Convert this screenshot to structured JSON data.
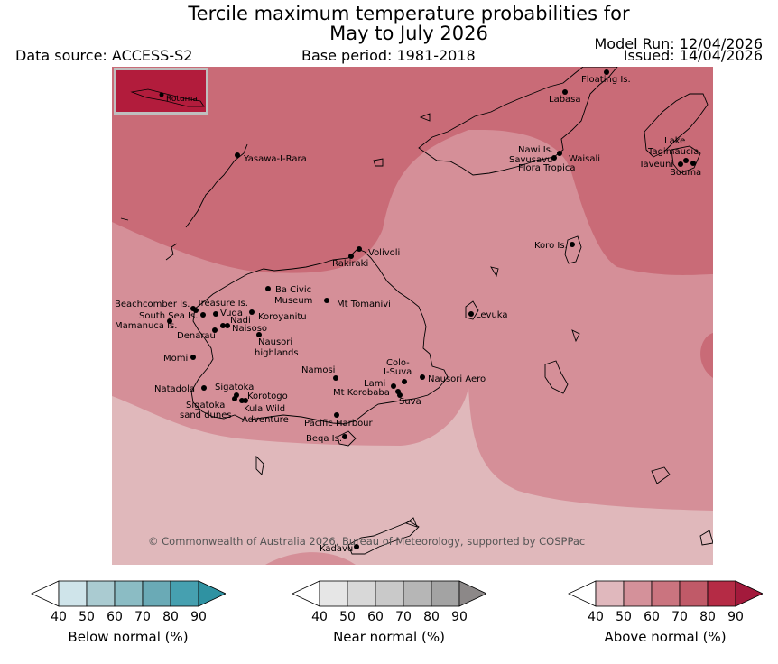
{
  "header": {
    "title_line1": "Tercile maximum temperature probabilities for",
    "title_line2": "May to July 2026",
    "data_source": "Data source: ACCESS-S2",
    "base_period": "Base period: 1981-2018",
    "model_run": "Model Run: 12/04/2026",
    "issued": "Issued: 14/04/2026"
  },
  "map": {
    "inset_label": "Rotuma",
    "copyright": "© Commonwealth of Australia 2026, Bureau of Meteorology, supported by COSPPac",
    "places": [
      {
        "id": "floating",
        "label": "Floating Is."
      },
      {
        "id": "labasa",
        "label": "Labasa"
      },
      {
        "id": "nawi",
        "label": "Nawi Is."
      },
      {
        "id": "savusavu",
        "label": "Savusavu"
      },
      {
        "id": "waisali",
        "label": "Waisali"
      },
      {
        "id": "flora",
        "label": "Flora Tropica"
      },
      {
        "id": "lake_tag",
        "label": "Lake"
      },
      {
        "id": "lake_tag2",
        "label": "Tagimaucia"
      },
      {
        "id": "taveuni",
        "label": "Taveuni"
      },
      {
        "id": "bouma",
        "label": "Bouma"
      },
      {
        "id": "yasawa",
        "label": "Yasawa-I-Rara"
      },
      {
        "id": "koro",
        "label": "Koro Is."
      },
      {
        "id": "volivoli",
        "label": "Volivoli"
      },
      {
        "id": "rakiraki",
        "label": "Rakiraki"
      },
      {
        "id": "bacivic",
        "label": "Ba Civic"
      },
      {
        "id": "bacivic2",
        "label": "Museum"
      },
      {
        "id": "tomanivi",
        "label": "Mt Tomanivi"
      },
      {
        "id": "levuka",
        "label": "Levuka"
      },
      {
        "id": "beachcomber",
        "label": "Beachcomber Is."
      },
      {
        "id": "treasure",
        "label": "Treasure Is."
      },
      {
        "id": "southsea",
        "label": "South Sea Is."
      },
      {
        "id": "vuda",
        "label": "Vuda"
      },
      {
        "id": "koroyanitu",
        "label": "Koroyanitu"
      },
      {
        "id": "nadi",
        "label": "Nadi"
      },
      {
        "id": "mamanuca",
        "label": "Mamanuca Is."
      },
      {
        "id": "naisoso",
        "label": "Naisoso"
      },
      {
        "id": "denarau",
        "label": "Denarau"
      },
      {
        "id": "nausori_h",
        "label": "Nausori"
      },
      {
        "id": "nausori_h2",
        "label": "highlands"
      },
      {
        "id": "momi",
        "label": "Momi"
      },
      {
        "id": "namosi",
        "label": "Namosi"
      },
      {
        "id": "colo",
        "label": "Colo-"
      },
      {
        "id": "colo2",
        "label": "I-Suva"
      },
      {
        "id": "nausori_aero",
        "label": "Nausori Aero"
      },
      {
        "id": "natadola",
        "label": "Natadola"
      },
      {
        "id": "sigatoka",
        "label": "Sigatoka"
      },
      {
        "id": "lami",
        "label": "Lami"
      },
      {
        "id": "korobaba",
        "label": "Mt Korobaba"
      },
      {
        "id": "korotogo",
        "label": "Korotogo"
      },
      {
        "id": "suva",
        "label": "Suva"
      },
      {
        "id": "sig_dunes",
        "label": "Sigatoka"
      },
      {
        "id": "sig_dunes2",
        "label": "sand dunes"
      },
      {
        "id": "kula",
        "label": "Kula Wild"
      },
      {
        "id": "kula2",
        "label": "Adventure"
      },
      {
        "id": "pacific",
        "label": "Pacific Harbour"
      },
      {
        "id": "beqa",
        "label": "Beqa Is."
      },
      {
        "id": "kadavu",
        "label": "Kadavu"
      }
    ]
  },
  "legends": [
    {
      "id": "below",
      "label": "Below normal (%)",
      "colors": [
        "#cfe4ea",
        "#aacbd1",
        "#8bbcc4",
        "#6aaab6",
        "#46a0b0",
        "#2f92a2"
      ],
      "ticks": [
        "40",
        "50",
        "60",
        "70",
        "80",
        "90"
      ]
    },
    {
      "id": "near",
      "label": "Near normal (%)",
      "colors": [
        "#e6e6e6",
        "#d8d8d8",
        "#c9c9c9",
        "#b6b6b6",
        "#a3a3a3",
        "#8c8888"
      ],
      "ticks": [
        "40",
        "50",
        "60",
        "70",
        "80",
        "90"
      ]
    },
    {
      "id": "above",
      "label": "Above normal (%)",
      "colors": [
        "#e0b8bd",
        "#d4919a",
        "#ca747f",
        "#c05a68",
        "#b52b45",
        "#a31a3c"
      ],
      "ticks": [
        "40",
        "50",
        "60",
        "70",
        "80",
        "90"
      ]
    }
  ]
}
